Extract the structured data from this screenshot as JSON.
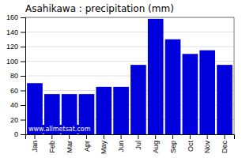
{
  "chart_data": {
    "type": "bar",
    "title": "Asahikawa : precipitation (mm)",
    "categories": [
      "Jan",
      "Feb",
      "Mar",
      "Apr",
      "May",
      "Jun",
      "Jul",
      "Aug",
      "Sep",
      "Oct",
      "Nov",
      "Dec"
    ],
    "values": [
      70,
      55,
      55,
      55,
      65,
      65,
      95,
      158,
      130,
      110,
      115,
      95
    ],
    "color": "#0000dd",
    "ylim": [
      0,
      160
    ],
    "yticks": [
      0,
      20,
      40,
      60,
      80,
      100,
      120,
      140,
      160
    ],
    "grid": true,
    "annotation": "www.allmetsat.com"
  }
}
